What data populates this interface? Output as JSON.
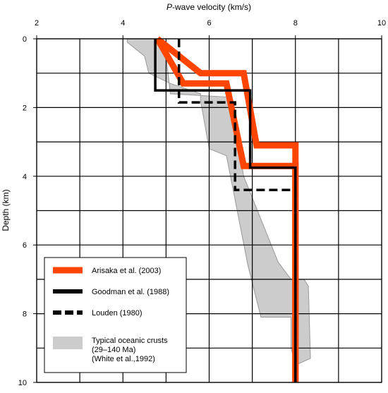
{
  "chart_data": {
    "type": "line",
    "title": "",
    "xlabel_italic": "P",
    "xlabel_rest": "-wave velocity (km/s)",
    "ylabel": "Depth (km)",
    "xlim": [
      2,
      10
    ],
    "ylim": [
      0,
      10
    ],
    "x_axis_position": "top",
    "y_inverted": true,
    "grid": true,
    "x_ticks": [
      2,
      4,
      6,
      8,
      10
    ],
    "y_ticks": [
      0,
      2,
      4,
      6,
      8,
      10
    ],
    "legend_position": "bottom-left",
    "series": [
      {
        "name": "Arisaka et al. (2003)",
        "style": "thick-band",
        "color": "#ff4500",
        "boundary_a": [
          [
            4.8,
            0.0
          ],
          [
            5.8,
            1.0
          ],
          [
            6.8,
            1.0
          ],
          [
            7.1,
            3.1
          ],
          [
            8.0,
            3.1
          ],
          [
            8.0,
            10.0
          ]
        ],
        "boundary_b": [
          [
            4.8,
            0.0
          ],
          [
            5.4,
            1.3
          ],
          [
            6.4,
            1.3
          ],
          [
            6.8,
            3.7
          ],
          [
            8.0,
            3.7
          ],
          [
            8.0,
            10.0
          ]
        ]
      },
      {
        "name": "Goodman et al. (1988)",
        "style": "solid",
        "color": "#000000",
        "points": [
          [
            4.75,
            0.0
          ],
          [
            4.75,
            1.5
          ],
          [
            6.95,
            1.5
          ],
          [
            6.95,
            3.75
          ],
          [
            8.0,
            3.75
          ],
          [
            8.0,
            10.0
          ]
        ]
      },
      {
        "name": "Louden (1980)",
        "style": "dashed",
        "color": "#000000",
        "points": [
          [
            5.3,
            0.0
          ],
          [
            5.3,
            1.85
          ],
          [
            6.6,
            1.85
          ],
          [
            6.6,
            4.4
          ],
          [
            8.0,
            4.4
          ],
          [
            8.0,
            10.0
          ]
        ]
      },
      {
        "name": "Typical oceanic crusts\n(29–140 Ma)\n(White et al.,1992)",
        "style": "area",
        "color": "#cccccc",
        "polygon": [
          [
            4.1,
            0.0
          ],
          [
            4.8,
            0.0
          ],
          [
            5.0,
            0.5
          ],
          [
            5.1,
            1.6
          ],
          [
            6.5,
            1.7
          ],
          [
            6.8,
            4.0
          ],
          [
            7.6,
            6.5
          ],
          [
            7.9,
            7.0
          ],
          [
            8.2,
            7.0
          ],
          [
            8.3,
            7.2
          ],
          [
            8.35,
            9.3
          ],
          [
            8.0,
            9.5
          ],
          [
            7.9,
            9.0
          ],
          [
            7.9,
            8.1
          ],
          [
            7.2,
            8.1
          ],
          [
            6.9,
            6.6
          ],
          [
            6.4,
            3.4
          ],
          [
            6.0,
            3.2
          ],
          [
            5.8,
            1.8
          ],
          [
            5.8,
            1.6
          ],
          [
            5.1,
            1.3
          ],
          [
            4.6,
            1.0
          ],
          [
            4.5,
            0.5
          ],
          [
            4.1,
            0.1
          ]
        ]
      }
    ]
  }
}
